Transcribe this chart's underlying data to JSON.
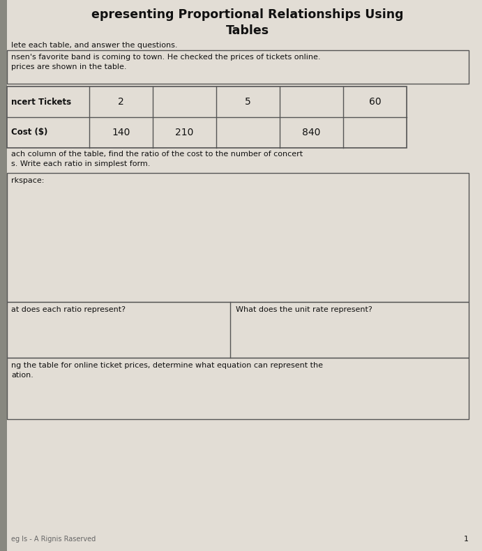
{
  "title_line1": "epresenting Proportional Relationships Using",
  "title_line2": "Tables",
  "subtitle": "lete each table, and answer the questions.",
  "context_text": "nsen's favorite band is coming to town. He checked the prices of tickets online.\nprices are shown in the table.",
  "row1_label": "ncert Tickets",
  "row2_label": "Cost ($)",
  "tickets_values": [
    "2",
    "",
    "5",
    "",
    "60"
  ],
  "cost_values": [
    "140",
    "210",
    "",
    "840",
    ""
  ],
  "instruction_text": "ach column of the table, find the ratio of the cost to the number of concert\ns. Write each ratio in simplest form.",
  "workspace_label": "rkspace:",
  "question_left": "at does each ratio represent?",
  "question_right": "What does the unit rate represent?",
  "bottom_text": "ng the table for online ticket prices, determine what equation can represent the\nation.",
  "footer": "eg ls - A Rignis Raserved",
  "page_number": "1",
  "bg_color": "#ccc8c0",
  "paper_color": "#e2ddd5",
  "title_color": "#111111",
  "text_color": "#111111",
  "border_color": "#555555"
}
